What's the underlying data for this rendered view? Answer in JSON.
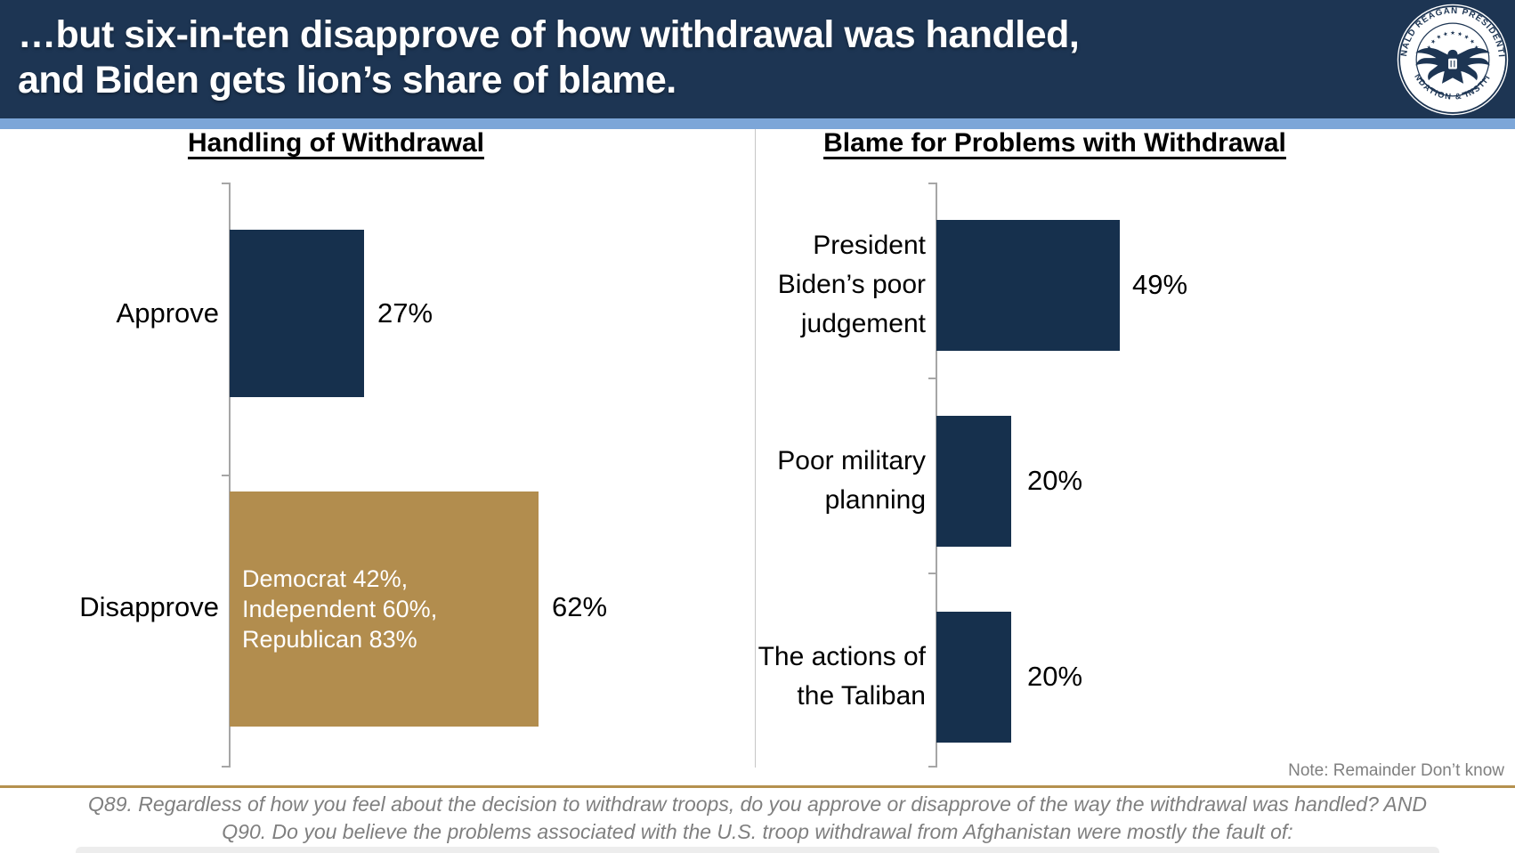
{
  "slide": {
    "header": {
      "title_line1": "…but six-in-ten disapprove of how withdrawal was handled,",
      "title_line2": "and Biden gets lion’s share of blame.",
      "logo_ring_top": "RONALD REAGAN PRESIDENTIAL",
      "logo_ring_bottom": "FOUNDATION & INSTITUTE",
      "logo_stars": "★ ★ ★ ★ ★ ★ ★ ★ ★"
    },
    "note": "Note: Remainder Don’t know",
    "footer_line1": "Q89. Regardless of how you feel about the decision to withdraw troops, do you approve or disapprove of the way the withdrawal was handled? AND",
    "footer_line2": "Q90. Do you believe the problems associated with the U.S. troop withdrawal from Afghanistan were mostly the fault of:",
    "colors": {
      "header_navy": "#1d3553",
      "accent_blue": "#7ca6d8",
      "bar_navy": "#16304d",
      "bar_gold": "#b28d4e",
      "gold_line": "#b5914e"
    }
  },
  "chart_data": [
    {
      "type": "bar",
      "orientation": "horizontal",
      "title": "Handling of Withdrawal",
      "categories": [
        "Approve",
        "Disapprove"
      ],
      "values": [
        27,
        62
      ],
      "value_labels": [
        "27%",
        "62%"
      ],
      "bar_colors": [
        "#16304d",
        "#b28d4e"
      ],
      "breakdown_lines": [
        "Democrat 42%,",
        "Independent 60%,",
        "Republican 83%"
      ],
      "xlim": [
        0,
        100
      ],
      "grid": false,
      "legend": false
    },
    {
      "type": "bar",
      "orientation": "horizontal",
      "title": "Blame for Problems with Withdrawal",
      "categories": [
        "President Biden’s poor judgement",
        "Poor military planning",
        "The actions of the Taliban"
      ],
      "category_lines": [
        [
          "President",
          "Biden’s poor",
          "judgement"
        ],
        [
          "Poor military",
          "planning"
        ],
        [
          "The actions of",
          "the Taliban"
        ]
      ],
      "values": [
        49,
        20,
        20
      ],
      "value_labels": [
        "49%",
        "20%",
        "20%"
      ],
      "bar_colors": [
        "#16304d",
        "#16304d",
        "#16304d"
      ],
      "xlim": [
        0,
        100
      ],
      "grid": false,
      "legend": false
    }
  ]
}
